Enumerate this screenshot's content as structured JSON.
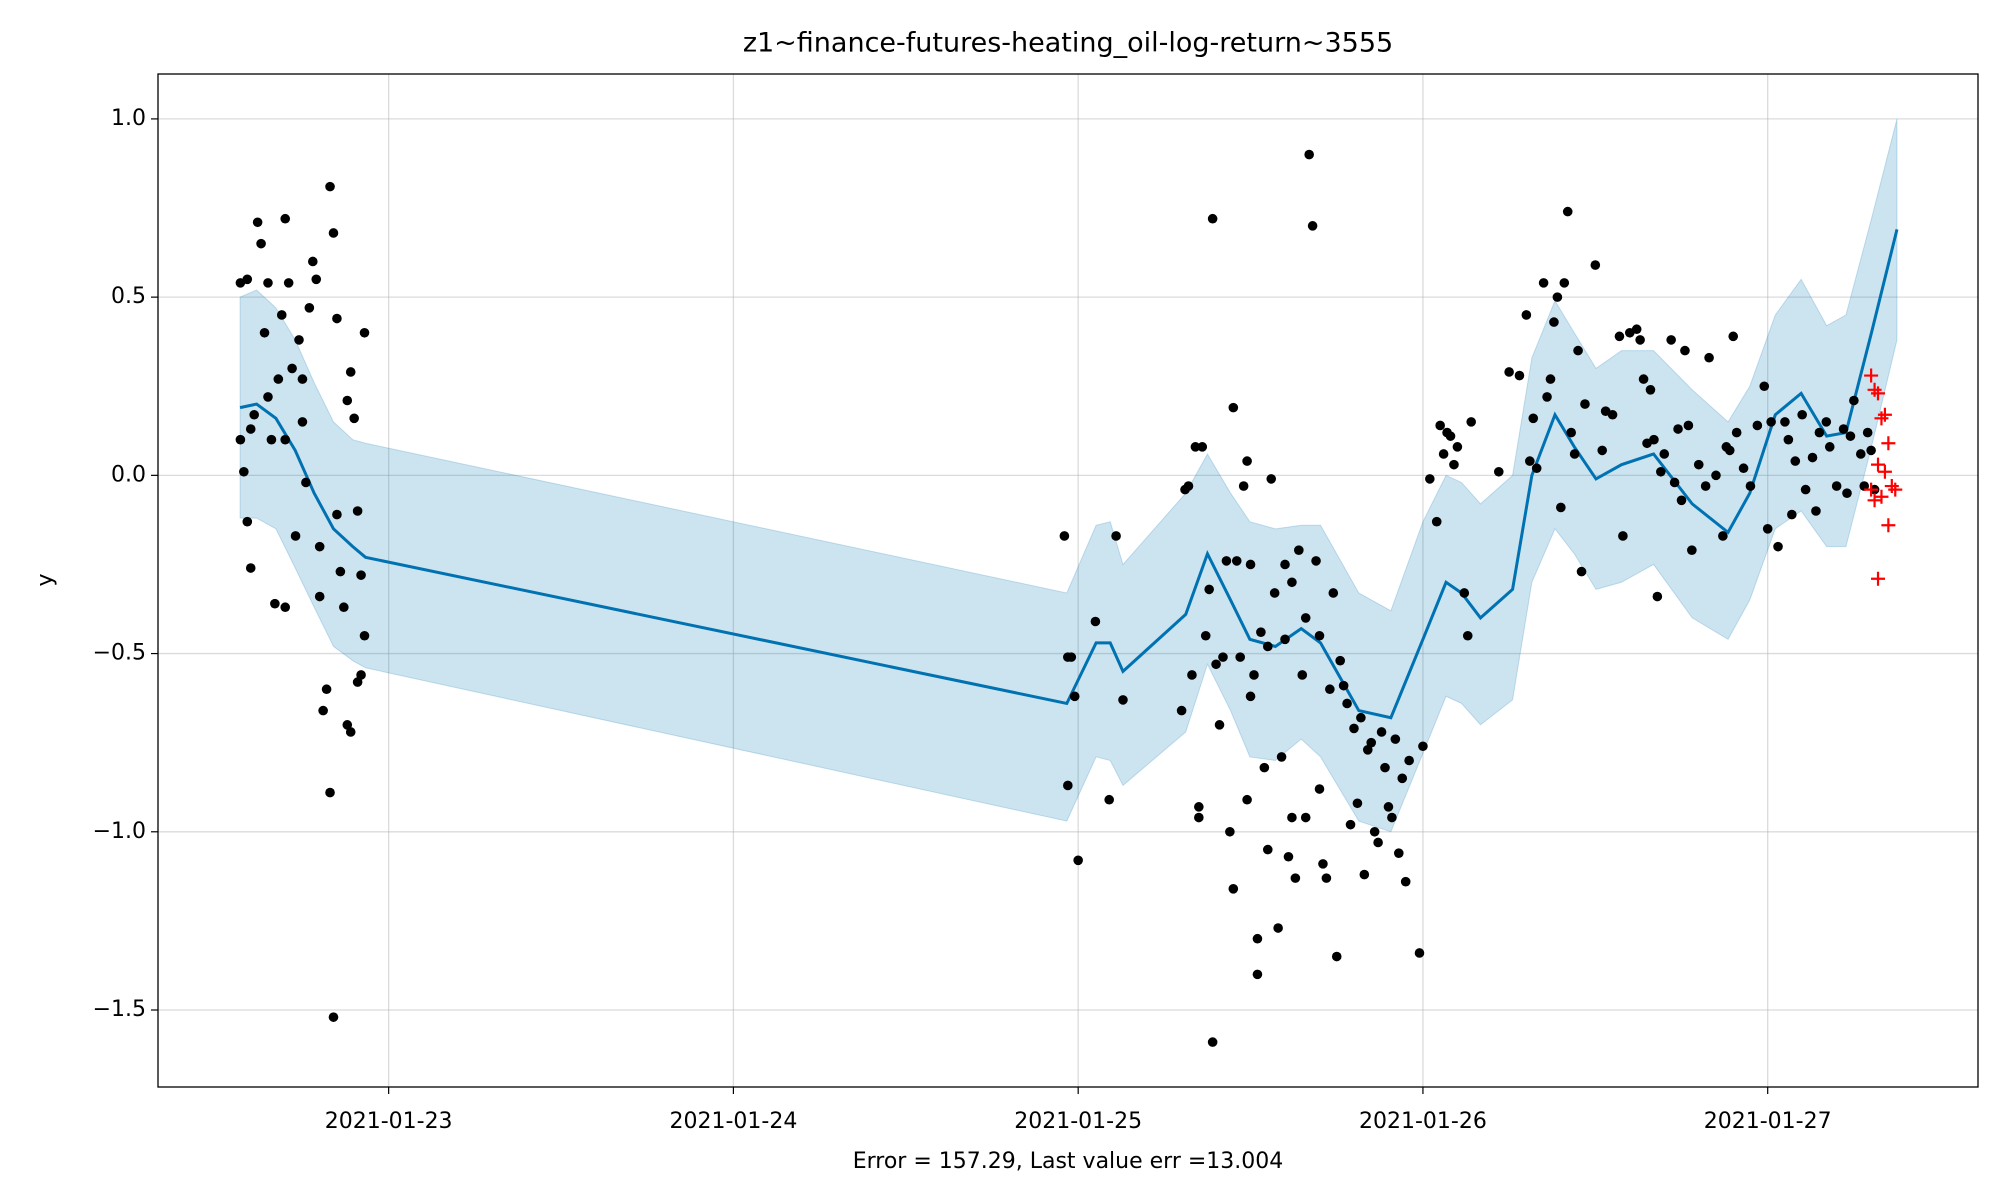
{
  "chart_data": {
    "type": "line",
    "title": "z1~finance-futures-heating_oil-log-return~3555",
    "xlabel": "Error = 157.29, Last value err =13.004",
    "ylabel": "y",
    "grid": true,
    "xlim": [
      22.331,
      27.61
    ],
    "ylim": [
      -1.716,
      1.126
    ],
    "xticks": [
      {
        "value": 23,
        "label": "2021-01-23"
      },
      {
        "value": 24,
        "label": "2021-01-24"
      },
      {
        "value": 25,
        "label": "2021-01-25"
      },
      {
        "value": 26,
        "label": "2021-01-26"
      },
      {
        "value": 27,
        "label": "2021-01-27"
      }
    ],
    "yticks": [
      {
        "value": -1.5,
        "label": "−1.5"
      },
      {
        "value": -1.0,
        "label": "−1.0"
      },
      {
        "value": -0.5,
        "label": "−0.5"
      },
      {
        "value": 0,
        "label": "0.0"
      },
      0.5,
      {
        "value": 1.0,
        "label": "1.0"
      }
    ],
    "band": {
      "color": "#0072b2",
      "x": [
        22.569,
        22.617,
        22.673,
        22.729,
        22.784,
        22.84,
        22.896,
        22.933,
        24.967,
        25.052,
        25.093,
        25.13,
        25.312,
        25.375,
        25.442,
        25.498,
        25.572,
        25.647,
        25.703,
        25.814,
        25.907,
        26.0,
        26.067,
        26.112,
        26.167,
        26.26,
        26.316,
        26.383,
        26.439,
        26.502,
        26.576,
        26.669,
        26.781,
        26.885,
        26.948,
        27.022,
        27.097,
        27.171,
        27.227,
        27.301,
        27.375
      ],
      "upper": [
        0.5,
        0.52,
        0.47,
        0.38,
        0.26,
        0.15,
        0.1,
        0.09,
        -0.33,
        -0.14,
        -0.13,
        -0.25,
        -0.05,
        0.06,
        -0.05,
        -0.13,
        -0.15,
        -0.14,
        -0.14,
        -0.33,
        -0.38,
        -0.13,
        0.0,
        -0.02,
        -0.08,
        0.0,
        0.33,
        0.49,
        0.4,
        0.3,
        0.35,
        0.35,
        0.24,
        0.15,
        0.25,
        0.45,
        0.55,
        0.42,
        0.45,
        0.72,
        1.0
      ],
      "lower": [
        -0.12,
        -0.12,
        -0.15,
        -0.26,
        -0.37,
        -0.48,
        -0.52,
        -0.54,
        -0.97,
        -0.79,
        -0.8,
        -0.87,
        -0.72,
        -0.53,
        -0.66,
        -0.79,
        -0.8,
        -0.74,
        -0.79,
        -0.97,
        -1.0,
        -0.78,
        -0.62,
        -0.64,
        -0.7,
        -0.63,
        -0.3,
        -0.15,
        -0.22,
        -0.32,
        -0.3,
        -0.25,
        -0.4,
        -0.46,
        -0.35,
        -0.15,
        -0.1,
        -0.2,
        -0.2,
        0.08,
        0.38
      ]
    },
    "forecast": {
      "color": "#0072b2",
      "x": [
        22.569,
        22.617,
        22.673,
        22.729,
        22.784,
        22.84,
        22.896,
        22.933,
        24.967,
        25.052,
        25.093,
        25.13,
        25.312,
        25.375,
        25.442,
        25.498,
        25.572,
        25.647,
        25.703,
        25.814,
        25.907,
        26.0,
        26.067,
        26.112,
        26.167,
        26.26,
        26.316,
        26.383,
        26.439,
        26.502,
        26.576,
        26.669,
        26.781,
        26.885,
        26.948,
        27.022,
        27.097,
        27.171,
        27.227,
        27.301,
        27.375
      ],
      "values": [
        0.19,
        0.2,
        0.16,
        0.07,
        -0.05,
        -0.15,
        -0.2,
        -0.23,
        -0.64,
        -0.47,
        -0.47,
        -0.55,
        -0.39,
        -0.22,
        -0.35,
        -0.46,
        -0.48,
        -0.43,
        -0.47,
        -0.66,
        -0.68,
        -0.46,
        -0.3,
        -0.33,
        -0.4,
        -0.32,
        0.0,
        0.17,
        0.08,
        -0.01,
        0.03,
        0.06,
        -0.08,
        -0.16,
        -0.05,
        0.17,
        0.23,
        0.11,
        0.12,
        0.4,
        0.69
      ]
    },
    "observed": {
      "color": "#000000",
      "x": [
        22.57,
        22.57,
        22.58,
        22.59,
        22.59,
        22.6,
        22.61,
        22.62,
        22.63,
        22.64,
        22.65,
        22.66,
        22.67,
        22.68,
        22.69,
        22.7,
        22.7,
        22.71,
        22.72,
        22.73,
        22.74,
        22.75,
        22.76,
        22.77,
        22.78,
        22.79,
        22.8,
        22.81,
        22.82,
        22.83,
        22.83,
        22.84,
        22.84,
        22.85,
        22.86,
        22.87,
        22.88,
        22.88,
        22.89,
        22.89,
        22.9,
        22.91,
        22.91,
        22.92,
        22.93,
        22.93,
        22.92,
        22.6,
        22.65,
        22.7,
        22.75,
        22.8,
        22.85,
        24.96,
        24.97,
        24.97,
        24.98,
        24.99,
        25.0,
        25.05,
        25.09,
        25.11,
        25.13,
        25.3,
        25.31,
        25.32,
        25.33,
        25.34,
        25.35,
        25.35,
        25.36,
        25.37,
        25.38,
        25.39,
        25.39,
        25.4,
        25.41,
        25.42,
        25.43,
        25.44,
        25.45,
        25.45,
        25.46,
        25.47,
        25.48,
        25.49,
        25.49,
        25.5,
        25.51,
        25.52,
        25.52,
        25.53,
        25.54,
        25.55,
        25.56,
        25.57,
        25.58,
        25.59,
        25.6,
        25.61,
        25.62,
        25.63,
        25.64,
        25.65,
        25.66,
        25.67,
        25.68,
        25.69,
        25.7,
        25.71,
        25.72,
        25.73,
        25.74,
        25.75,
        25.76,
        25.77,
        25.78,
        25.79,
        25.8,
        25.81,
        25.82,
        25.83,
        25.84,
        25.85,
        25.86,
        25.87,
        25.88,
        25.89,
        25.9,
        25.91,
        25.92,
        25.93,
        25.94,
        25.95,
        25.96,
        25.99,
        26.0,
        25.6,
        25.62,
        25.55,
        25.5,
        25.66,
        25.7,
        26.02,
        26.04,
        26.05,
        26.06,
        26.07,
        26.08,
        26.09,
        26.1,
        26.12,
        26.13,
        26.14,
        26.22,
        26.25,
        26.28,
        26.3,
        26.31,
        26.32,
        26.33,
        26.35,
        26.36,
        26.37,
        26.38,
        26.39,
        26.4,
        26.41,
        26.42,
        26.43,
        26.44,
        26.45,
        26.46,
        26.47,
        26.5,
        26.52,
        26.53,
        26.55,
        26.57,
        26.58,
        26.6,
        26.62,
        26.63,
        26.64,
        26.65,
        26.66,
        26.67,
        26.68,
        26.69,
        26.7,
        26.72,
        26.73,
        26.74,
        26.75,
        26.76,
        26.77,
        26.78,
        26.8,
        26.82,
        26.83,
        26.85,
        26.87,
        26.88,
        26.89,
        26.9,
        26.91,
        26.93,
        26.95,
        26.97,
        26.99,
        27.0,
        27.01,
        27.03,
        27.05,
        27.06,
        27.07,
        27.08,
        27.1,
        27.11,
        27.13,
        27.14,
        27.15,
        27.17,
        27.18,
        27.2,
        27.22,
        27.23,
        27.24,
        27.25,
        27.27,
        27.28,
        27.29,
        27.3,
        27.31
      ],
      "values": [
        0.54,
        0.1,
        0.01,
        -0.13,
        0.55,
        -0.26,
        0.17,
        0.71,
        0.65,
        0.4,
        0.54,
        0.1,
        -0.36,
        0.27,
        0.45,
        0.72,
        -0.37,
        0.54,
        0.3,
        -0.17,
        0.38,
        0.15,
        -0.02,
        0.47,
        0.6,
        0.55,
        -0.34,
        -0.66,
        -0.6,
        0.81,
        -0.89,
        0.68,
        -1.52,
        0.44,
        -0.27,
        -0.37,
        0.21,
        -0.7,
        0.29,
        -0.72,
        0.16,
        -0.58,
        -0.1,
        -0.28,
        0.4,
        -0.45,
        -0.56,
        0.13,
        0.22,
        0.1,
        0.27,
        -0.2,
        -0.11,
        -0.17,
        -0.51,
        -0.87,
        -0.51,
        -0.62,
        -1.08,
        -0.41,
        -0.91,
        -0.17,
        -0.63,
        -0.66,
        -0.04,
        -0.03,
        -0.56,
        0.08,
        -0.93,
        -0.96,
        0.08,
        -0.45,
        -0.32,
        0.72,
        -1.59,
        -0.53,
        -0.7,
        -0.51,
        -0.24,
        -1.0,
        -1.16,
        0.19,
        -0.24,
        -0.51,
        -0.03,
        0.04,
        -0.91,
        -0.25,
        -0.56,
        -1.4,
        -1.3,
        -0.44,
        -0.82,
        -1.05,
        -0.01,
        -0.33,
        -1.27,
        -0.79,
        -0.46,
        -1.07,
        -0.96,
        -1.13,
        -0.21,
        -0.56,
        -0.96,
        0.9,
        0.7,
        -0.24,
        -0.88,
        -1.09,
        -1.13,
        -0.6,
        -0.33,
        -1.35,
        -0.52,
        -0.59,
        -0.64,
        -0.98,
        -0.71,
        -0.92,
        -0.68,
        -1.12,
        -0.77,
        -0.75,
        -1.0,
        -1.03,
        -0.72,
        -0.82,
        -0.93,
        -0.96,
        -0.74,
        -1.06,
        -0.85,
        -1.14,
        -0.8,
        -1.34,
        -0.76,
        -0.25,
        -0.3,
        -0.48,
        -0.62,
        -0.4,
        -0.45,
        -0.01,
        -0.13,
        0.14,
        0.06,
        0.12,
        0.11,
        0.03,
        0.08,
        -0.33,
        -0.45,
        0.15,
        0.01,
        0.29,
        0.28,
        0.45,
        0.04,
        0.16,
        0.02,
        0.54,
        0.22,
        0.27,
        0.43,
        0.5,
        -0.09,
        0.54,
        0.74,
        0.12,
        0.06,
        0.35,
        -0.27,
        0.2,
        0.59,
        0.07,
        0.18,
        0.17,
        0.39,
        -0.17,
        0.4,
        0.41,
        0.38,
        0.27,
        0.09,
        0.24,
        0.1,
        -0.34,
        0.01,
        0.06,
        0.38,
        -0.02,
        0.13,
        -0.07,
        0.35,
        0.14,
        -0.21,
        0.03,
        -0.03,
        0.33,
        0.0,
        -0.17,
        0.08,
        0.07,
        0.39,
        0.12,
        0.02,
        -0.03,
        0.14,
        0.25,
        -0.15,
        0.15,
        -0.2,
        0.15,
        0.1,
        -0.11,
        0.04,
        0.17,
        -0.04,
        0.05,
        -0.1,
        0.12,
        0.15,
        0.08,
        -0.03,
        0.13,
        -0.05,
        0.11,
        0.21,
        0.06,
        -0.03,
        0.12,
        0.07,
        -0.04
      ]
    },
    "actual": {
      "color": "#ff0000",
      "x": [
        27.3,
        27.31,
        27.32,
        27.33,
        27.34,
        27.35,
        27.32,
        27.34,
        27.36,
        27.3,
        27.31,
        27.33,
        27.35,
        27.32,
        27.37
      ],
      "values": [
        0.28,
        0.24,
        0.23,
        0.16,
        0.17,
        0.09,
        0.03,
        0.01,
        -0.03,
        -0.04,
        -0.07,
        -0.06,
        -0.14,
        -0.29,
        -0.04
      ]
    }
  }
}
